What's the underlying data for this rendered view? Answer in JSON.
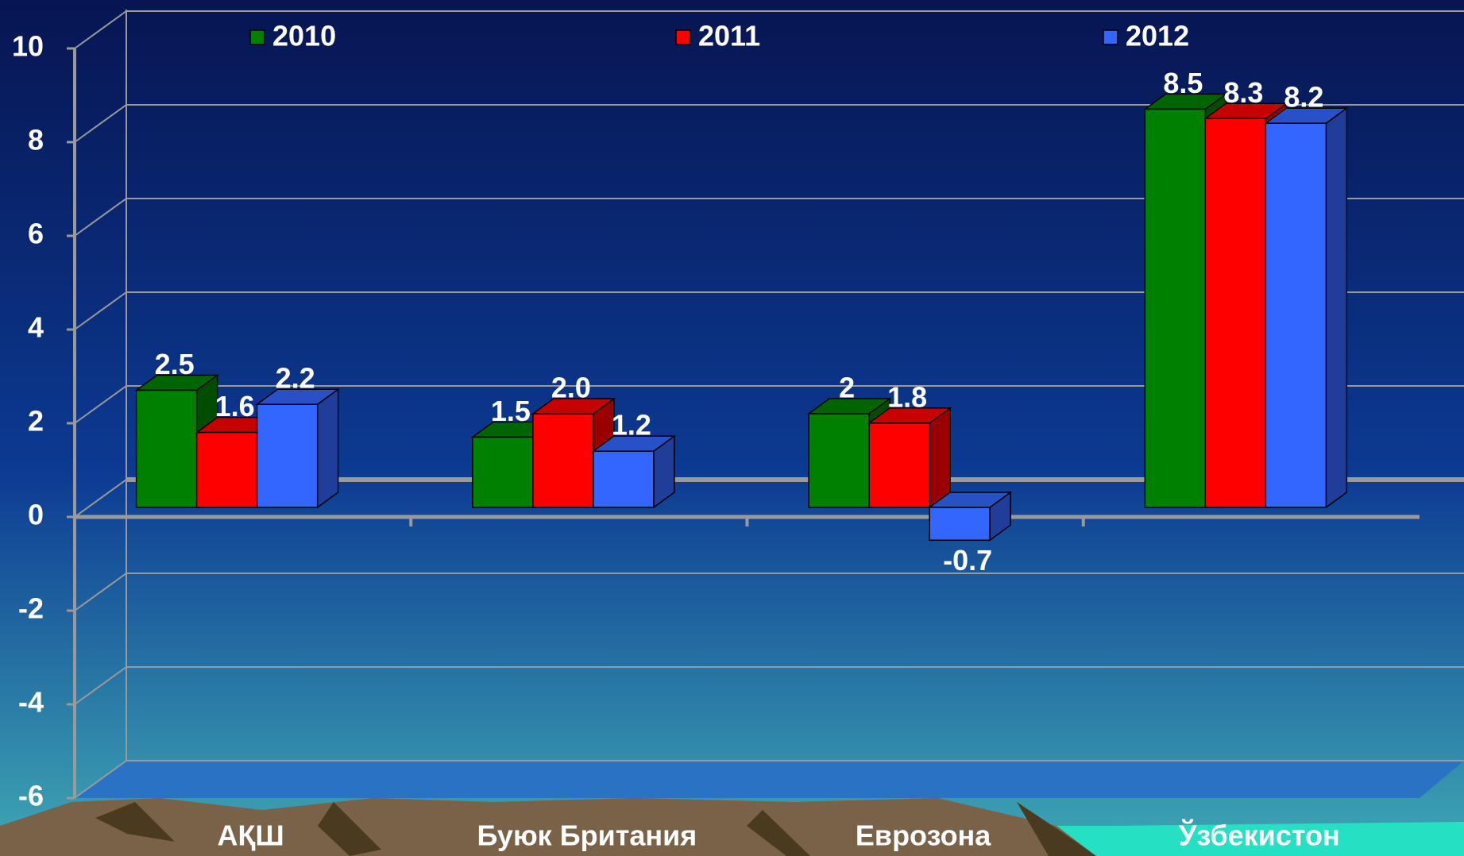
{
  "chart_data": {
    "type": "bar3d",
    "categories": [
      "АҚШ",
      "Буюк Британия",
      "Еврозона",
      "Ўзбекистон"
    ],
    "series": [
      {
        "name": "2010",
        "color": "#008000",
        "values": [
          2.5,
          1.5,
          2,
          8.5
        ],
        "value_labels": [
          "2.5",
          "1.5",
          "2",
          "8.5"
        ]
      },
      {
        "name": "2011",
        "color": "#ff0000",
        "values": [
          1.6,
          2.0,
          1.8,
          8.3
        ],
        "value_labels": [
          "1.6",
          "2.0",
          "1.8",
          "8.3"
        ]
      },
      {
        "name": "2012",
        "color": "#3366ff",
        "values": [
          2.2,
          1.2,
          -0.7,
          8.2
        ],
        "value_labels": [
          "2.2",
          "1.2",
          "-0.7",
          "8.2"
        ]
      }
    ],
    "ylim": [
      -6,
      10
    ],
    "yticks": [
      -6,
      -4,
      -2,
      0,
      2,
      4,
      6,
      8,
      10
    ],
    "grid": true
  }
}
